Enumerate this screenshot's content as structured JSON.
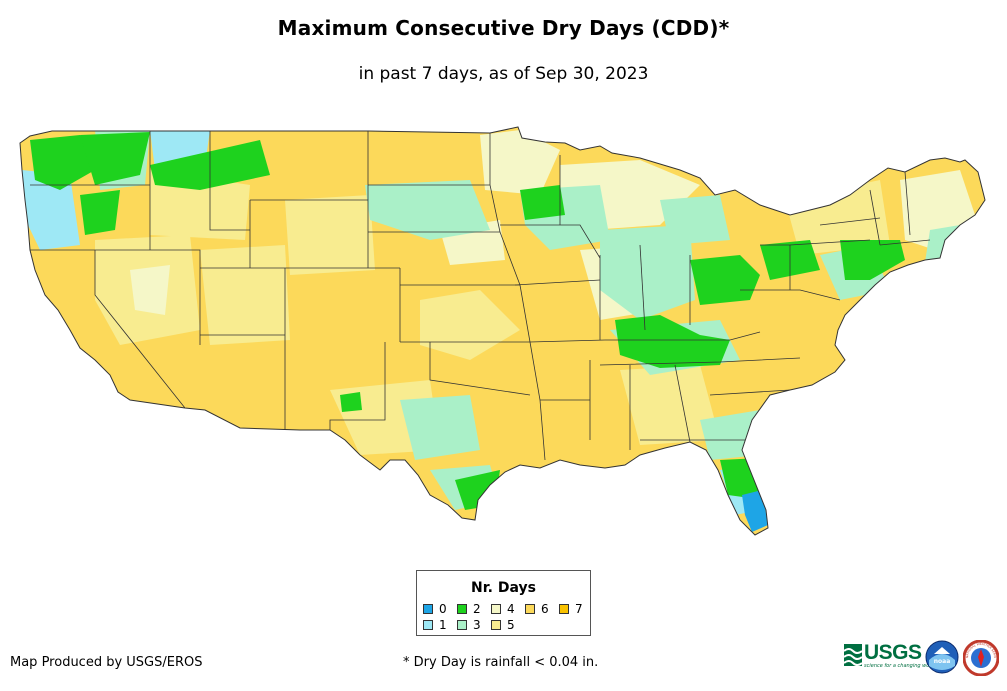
{
  "title": "Maximum Consecutive Dry Days (CDD)*",
  "subtitle": "in past 7 days, as of Sep 30, 2023",
  "legend": {
    "title": "Nr. Days",
    "items": [
      {
        "label": "0",
        "color": "#1ea5e6"
      },
      {
        "label": "1",
        "color": "#9ee8f5"
      },
      {
        "label": "2",
        "color": "#1ed21e"
      },
      {
        "label": "3",
        "color": "#aaf0c8"
      },
      {
        "label": "4",
        "color": "#f5f7c8"
      },
      {
        "label": "5",
        "color": "#f8ec90"
      },
      {
        "label": "6",
        "color": "#fcd95a"
      },
      {
        "label": "7",
        "color": "#f9c200"
      }
    ]
  },
  "credit": "Map Produced by USGS/EROS",
  "footnote": "* Dry Day is rainfall < 0.04 in.",
  "logos": {
    "usgs_text": "USGS",
    "usgs_tagline": "science for a changing world",
    "noaa_text": "noaa",
    "nws_text": "NATIONAL WEATHER SERVICE"
  }
}
